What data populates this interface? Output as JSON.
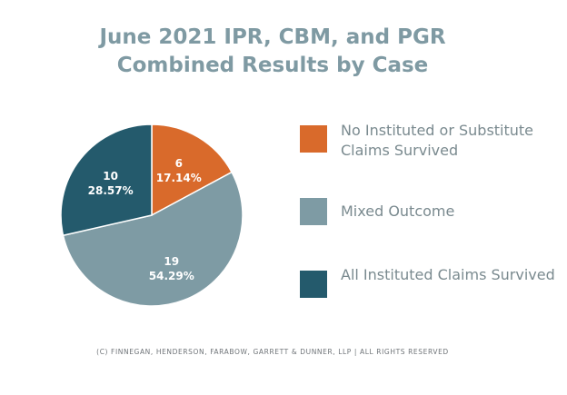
{
  "title": {
    "line1": "June 2021 IPR, CBM, and PGR",
    "line2": "Combined Results by Case"
  },
  "chart_data": {
    "type": "pie",
    "title": "June 2021 IPR, CBM, and PGR Combined Results by Case",
    "slices": [
      {
        "label": "No Instituted or Substitute Claims Survived",
        "value": 6,
        "percent": "17.14%",
        "color": "#d96a2b"
      },
      {
        "label": "Mixed Outcome",
        "value": 19,
        "percent": "54.29%",
        "color": "#7e9ba4"
      },
      {
        "label": "All Instituted Claims Survived",
        "value": 10,
        "percent": "28.57%",
        "color": "#245a6c"
      }
    ],
    "legend_position": "right"
  },
  "legend": [
    {
      "label": "No Instituted or Substitute Claims Survived",
      "color": "#d96a2b",
      "swatch": "orange-square"
    },
    {
      "label": "Mixed Outcome",
      "color": "#7e9ba4",
      "swatch": "grey-blue-square"
    },
    {
      "label": "All Instituted Claims Survived",
      "color": "#245a6c",
      "swatch": "dark-teal-square"
    }
  ],
  "footer": "(C) FINNEGAN, HENDERSON, FARABOW, GARRETT & DUNNER, LLP | ALL RIGHTS RESERVED"
}
